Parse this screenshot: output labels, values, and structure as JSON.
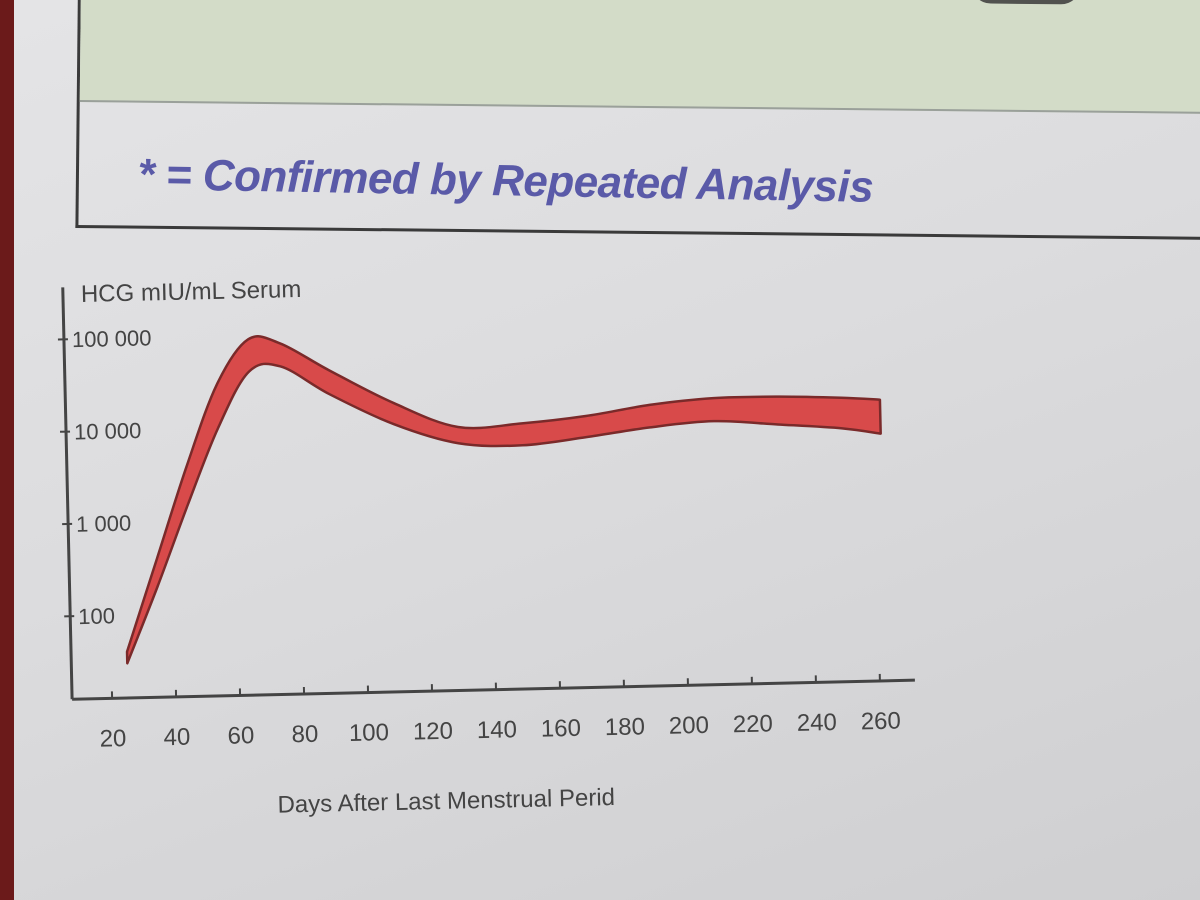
{
  "footnote": "* = Confirmed by Repeated Analysis",
  "colors": {
    "band_fill": "#d84a4a",
    "band_stroke": "#7a2a2a",
    "axis": "#444444",
    "footnote_text": "#5a5aa8",
    "result_band": "#d3dcc8"
  },
  "chart_data": {
    "type": "area",
    "title": "",
    "ylabel": "HCG mIU/mL Serum",
    "xlabel": "Days After Last Menstrual Perid",
    "yscale": "log",
    "ylim": [
      30,
      100000
    ],
    "xlim": [
      20,
      260
    ],
    "y_ticks": [
      100,
      1000,
      10000,
      100000
    ],
    "y_tick_labels": [
      "100",
      "1 000",
      "10 000",
      "100 000"
    ],
    "x_ticks": [
      20,
      40,
      60,
      80,
      100,
      120,
      140,
      160,
      180,
      200,
      220,
      240,
      260
    ],
    "x_tick_labels": [
      "20",
      "40",
      "60",
      "80",
      "100",
      "120",
      "140",
      "160",
      "180",
      "200",
      "220",
      "240",
      "260"
    ],
    "grid": false,
    "series": [
      {
        "x": [
          25,
          35,
          45,
          55,
          65,
          75,
          90,
          110,
          130,
          150,
          170,
          190,
          210,
          230,
          250,
          262
        ],
        "lower": [
          30,
          200,
          1500,
          10000,
          40000,
          45000,
          22000,
          10000,
          6000,
          5500,
          6500,
          8000,
          9000,
          8000,
          7000,
          6000
        ],
        "upper": [
          40,
          400,
          4000,
          30000,
          90000,
          80000,
          40000,
          17000,
          9000,
          9500,
          11000,
          14000,
          16000,
          16000,
          15000,
          14000
        ]
      }
    ]
  }
}
